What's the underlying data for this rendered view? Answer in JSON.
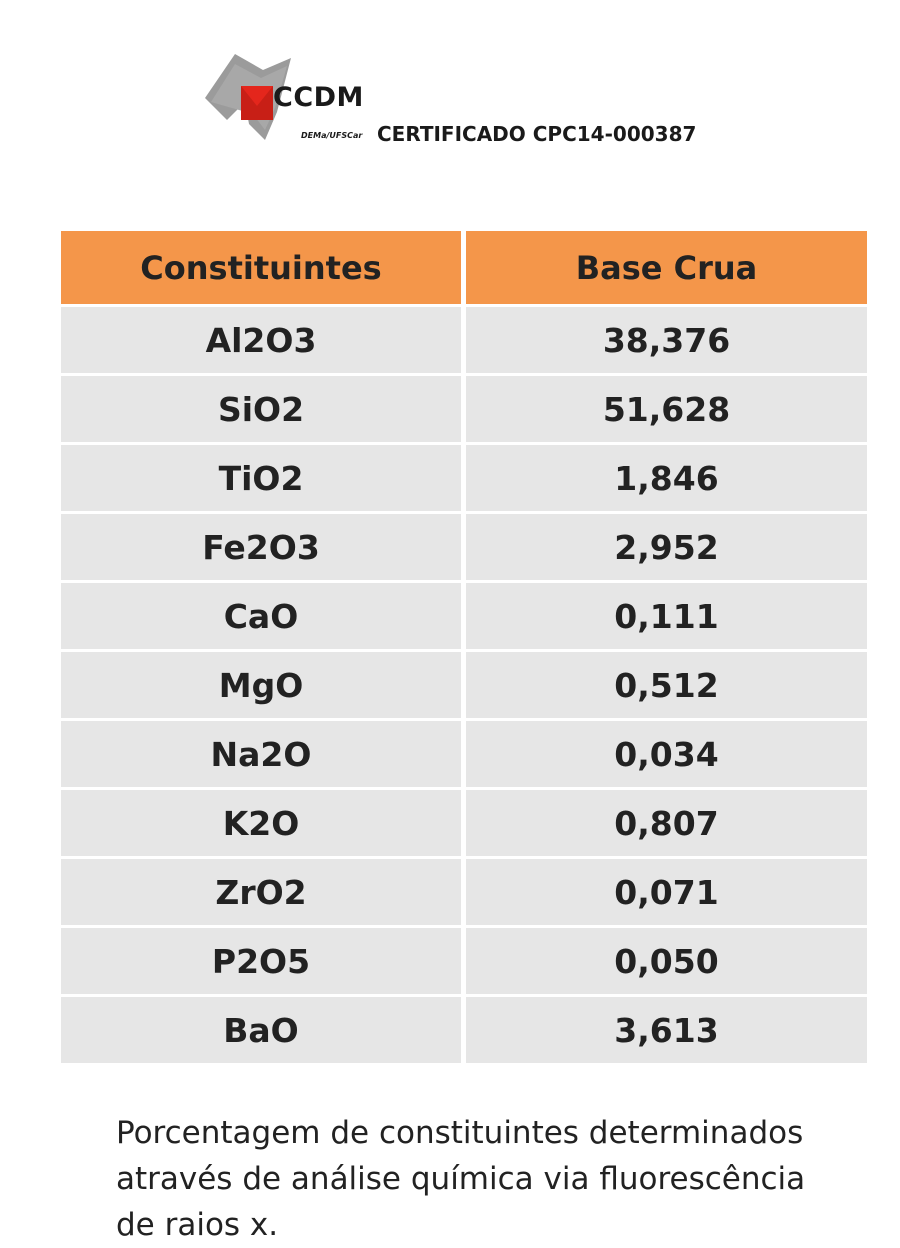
{
  "logo": {
    "name": "CCDM",
    "sub": "DEMa/UFSCar"
  },
  "certificate": "CERTIFICADO CPC14-000387",
  "table": {
    "headers": [
      "Constituintes",
      "Base Crua"
    ],
    "rows": [
      {
        "constituent": "Al2O3",
        "value": "38,376"
      },
      {
        "constituent": "SiO2",
        "value": "51,628"
      },
      {
        "constituent": "TiO2",
        "value": "1,846"
      },
      {
        "constituent": "Fe2O3",
        "value": "2,952"
      },
      {
        "constituent": "CaO",
        "value": "0,111"
      },
      {
        "constituent": "MgO",
        "value": "0,512"
      },
      {
        "constituent": "Na2O",
        "value": "0,034"
      },
      {
        "constituent": "K2O",
        "value": "0,807"
      },
      {
        "constituent": "ZrO2",
        "value": "0,071"
      },
      {
        "constituent": "P2O5",
        "value": "0,050"
      },
      {
        "constituent": "BaO",
        "value": "3,613"
      }
    ]
  },
  "caption": "Porcentagem de constituintes determinados através de análise química via fluorescência de raios x.",
  "colors": {
    "header_bg": "#f4964a",
    "cell_bg": "#e6e6e6",
    "logo_red": "#e4261c",
    "logo_gray": "#9b9b9b"
  }
}
